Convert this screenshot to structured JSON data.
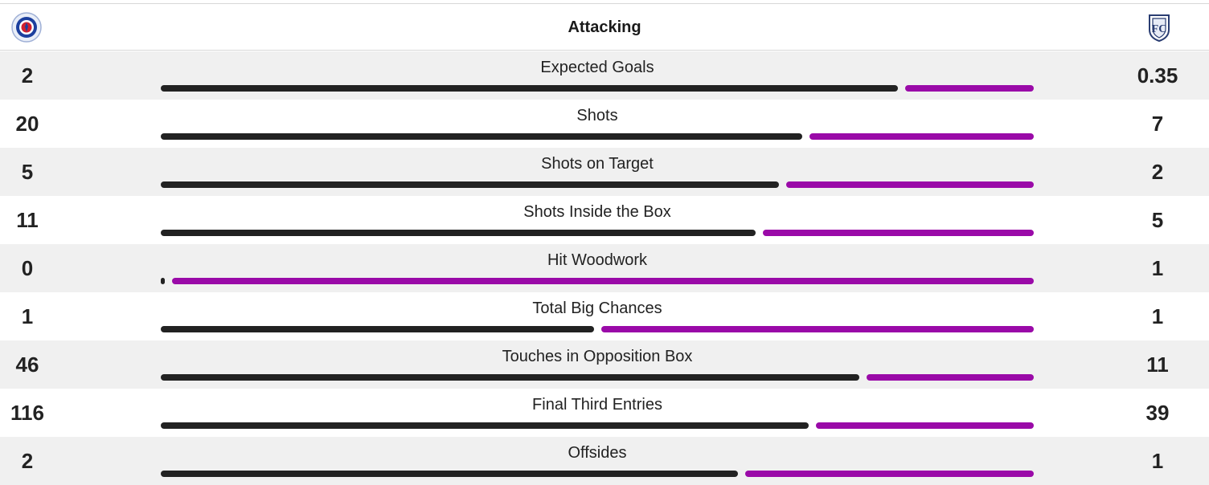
{
  "section_title": "Attacking",
  "home_team": {
    "crest_icon": "rangers-crest-icon"
  },
  "away_team": {
    "crest_icon": "dundee-crest-icon"
  },
  "colors": {
    "home_bar": "#222222",
    "away_bar": "#9a0aa8",
    "shade_row": "#f0f0f0"
  },
  "stats": [
    {
      "label": "Expected Goals",
      "home": "2",
      "away": "0.35"
    },
    {
      "label": "Shots",
      "home": "20",
      "away": "7"
    },
    {
      "label": "Shots on Target",
      "home": "5",
      "away": "2"
    },
    {
      "label": "Shots Inside the Box",
      "home": "11",
      "away": "5"
    },
    {
      "label": "Hit Woodwork",
      "home": "0",
      "away": "1"
    },
    {
      "label": "Total Big Chances",
      "home": "1",
      "away": "1"
    },
    {
      "label": "Touches in Opposition Box",
      "home": "46",
      "away": "11"
    },
    {
      "label": "Final Third Entries",
      "home": "116",
      "away": "39"
    },
    {
      "label": "Offsides",
      "home": "2",
      "away": "1"
    }
  ]
}
